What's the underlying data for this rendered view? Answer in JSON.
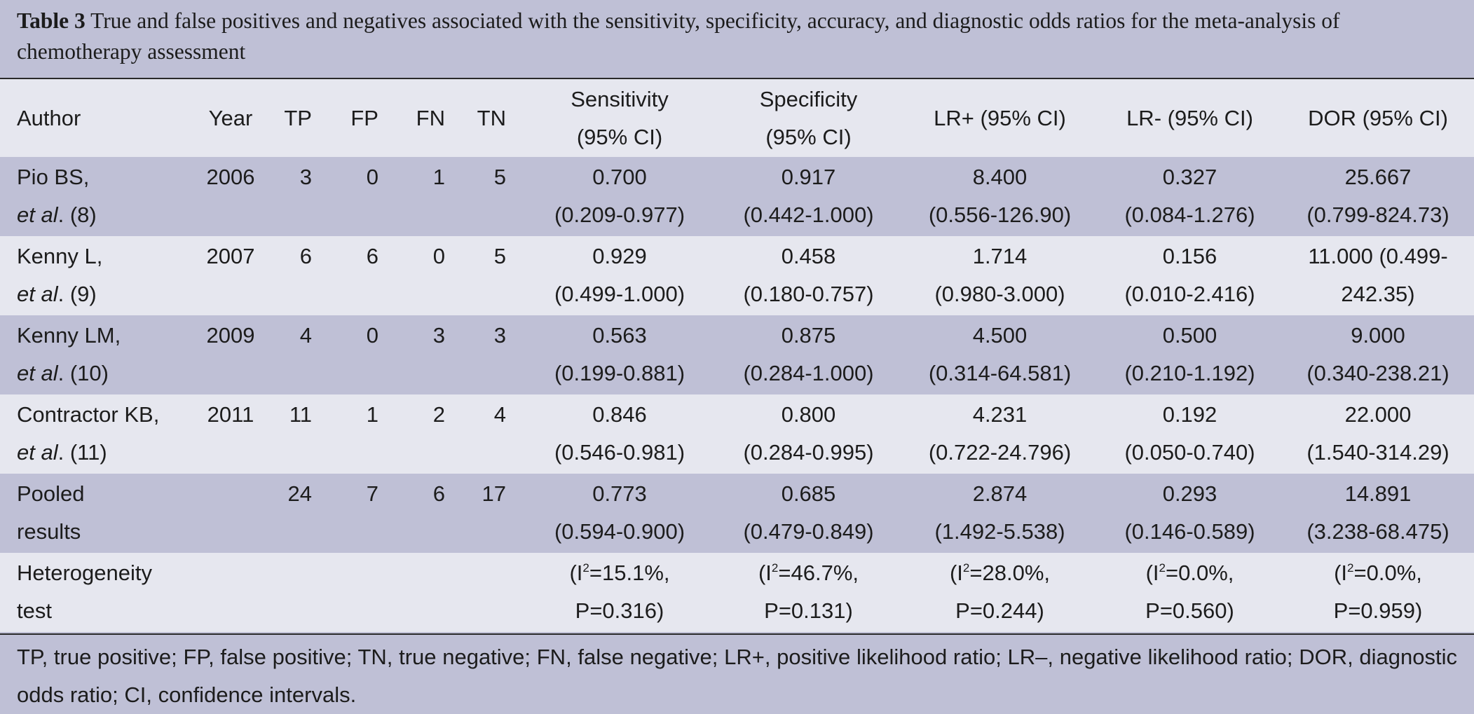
{
  "caption": {
    "label": "Table 3",
    "text": "True and false positives and negatives associated with the sensitivity, specificity, accuracy, and diagnostic odds ratios for the meta-analysis of chemotherapy assessment"
  },
  "header": {
    "author": "Author",
    "year": "Year",
    "tp": "TP",
    "fp": "FP",
    "fn": "FN",
    "tn": "TN",
    "sensitivity": [
      "Sensitivity",
      "(95% CI)"
    ],
    "specificity": [
      "Specificity",
      "(95% CI)"
    ],
    "lr_pos": "LR+ (95% CI)",
    "lr_neg": "LR- (95% CI)",
    "dor": "DOR (95% CI)"
  },
  "rows": [
    {
      "author": [
        "Pio BS,",
        "et al",
        ". (8)"
      ],
      "year": "2006",
      "tp": "3",
      "fp": "0",
      "fn": "1",
      "tn": "5",
      "sensitivity": [
        "0.700",
        "(0.209-0.977)"
      ],
      "specificity": [
        "0.917",
        "(0.442-1.000)"
      ],
      "lr_pos": [
        "8.400",
        "(0.556-126.90)"
      ],
      "lr_neg": [
        "0.327",
        "(0.084-1.276)"
      ],
      "dor": [
        "25.667",
        "(0.799-824.73)"
      ]
    },
    {
      "author": [
        "Kenny L,",
        "et al",
        ". (9)"
      ],
      "year": "2007",
      "tp": "6",
      "fp": "6",
      "fn": "0",
      "tn": "5",
      "sensitivity": [
        "0.929",
        "(0.499-1.000)"
      ],
      "specificity": [
        "0.458",
        "(0.180-0.757)"
      ],
      "lr_pos": [
        "1.714",
        "(0.980-3.000)"
      ],
      "lr_neg": [
        "0.156",
        "(0.010-2.416)"
      ],
      "dor": [
        "11.000 (0.499-",
        "242.35)"
      ]
    },
    {
      "author": [
        "Kenny LM,",
        "et al",
        ". (10)"
      ],
      "year": "2009",
      "tp": "4",
      "fp": "0",
      "fn": "3",
      "tn": "3",
      "sensitivity": [
        "0.563",
        "(0.199-0.881)"
      ],
      "specificity": [
        "0.875",
        "(0.284-1.000)"
      ],
      "lr_pos": [
        "4.500",
        "(0.314-64.581)"
      ],
      "lr_neg": [
        "0.500",
        "(0.210-1.192)"
      ],
      "dor": [
        "9.000",
        "(0.340-238.21)"
      ]
    },
    {
      "author": [
        "Contractor KB,",
        "et al",
        ". (11)"
      ],
      "year": "2011",
      "tp": "11",
      "fp": "1",
      "fn": "2",
      "tn": "4",
      "sensitivity": [
        "0.846",
        "(0.546-0.981)"
      ],
      "specificity": [
        "0.800",
        "(0.284-0.995)"
      ],
      "lr_pos": [
        "4.231",
        "(0.722-24.796)"
      ],
      "lr_neg": [
        "0.192",
        "(0.050-0.740)"
      ],
      "dor": [
        "22.000",
        "(1.540-314.29)"
      ]
    }
  ],
  "pooled": {
    "author": [
      "Pooled",
      "results"
    ],
    "year": "",
    "tp": "24",
    "fp": "7",
    "fn": "6",
    "tn": "17",
    "sensitivity": [
      "0.773",
      "(0.594-0.900)"
    ],
    "specificity": [
      "0.685",
      "(0.479-0.849)"
    ],
    "lr_pos": [
      "2.874",
      "(1.492-5.538)"
    ],
    "lr_neg": [
      "0.293",
      "(0.146-0.589)"
    ],
    "dor": [
      "14.891",
      "(3.238-68.475)"
    ]
  },
  "heterogeneity": {
    "author": [
      "Heterogeneity",
      "test"
    ],
    "i_symbol": "I",
    "sup": "2",
    "sensitivity": [
      "=15.1%,",
      "P=0.316)"
    ],
    "specificity": [
      "=46.7%,",
      "P=0.131)"
    ],
    "lr_pos": [
      "=28.0%,",
      "P=0.244)"
    ],
    "lr_neg": [
      "=0.0%,",
      "P=0.560)"
    ],
    "dor": [
      "=0.0%,",
      "P=0.959)"
    ]
  },
  "footnote": "TP, true positive; FP, false positive; TN, true negative; FN, false negative; LR+, positive likelihood ratio; LR–, negative likelihood ratio; DOR, diagnostic odds ratio; CI, confidence intervals.",
  "colors": {
    "dark_row": "#bfc0d6",
    "light_row": "#e6e7ef",
    "rule": "#2a2a2a"
  }
}
